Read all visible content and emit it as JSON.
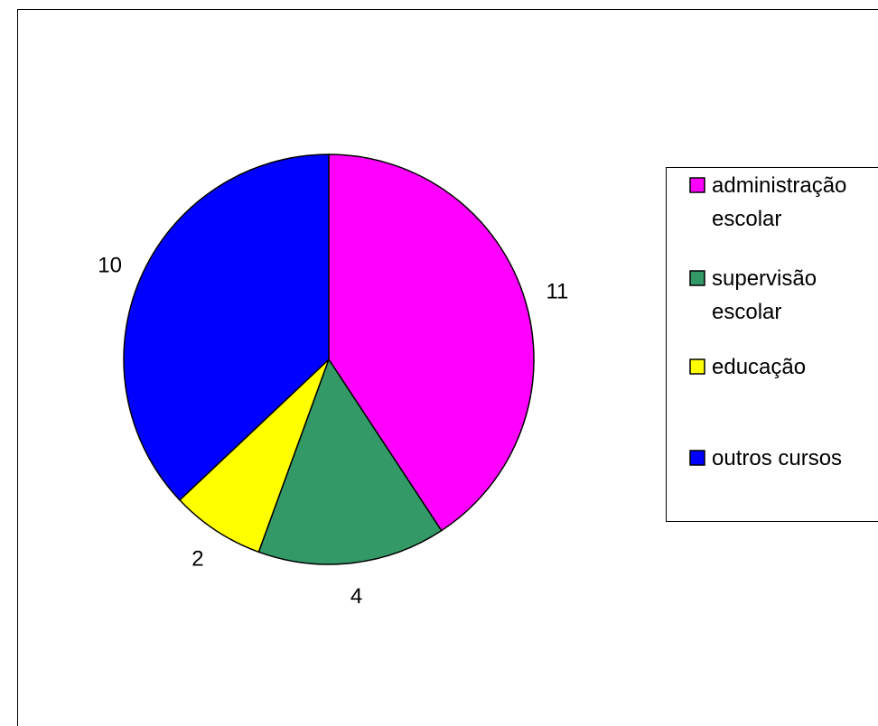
{
  "chart_data": {
    "type": "pie",
    "categories": [
      "administração escolar",
      "supervisão escolar",
      "educação",
      "outros cursos"
    ],
    "values": [
      11,
      4,
      2,
      10
    ],
    "labels": [
      "11",
      "4",
      "2",
      "10"
    ],
    "colors": [
      "#FF00FF",
      "#339966",
      "#FFFF00",
      "#0000FF"
    ],
    "legend": {
      "position": "right",
      "entries": [
        {
          "lines": [
            "administração",
            "escolar"
          ]
        },
        {
          "lines": [
            "supervisão",
            "escolar"
          ]
        },
        {
          "lines": [
            "educação"
          ]
        },
        {
          "lines": [
            "outros cursos"
          ]
        }
      ]
    }
  }
}
